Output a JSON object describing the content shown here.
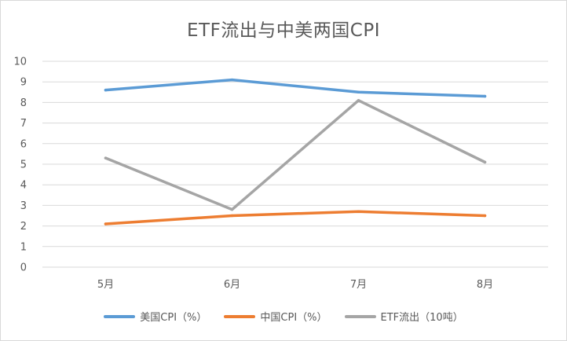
{
  "chart_data": {
    "type": "line",
    "title": "ETF流出与中美两国CPI",
    "categories": [
      "5月",
      "6月",
      "7月",
      "8月"
    ],
    "ylim": [
      0,
      10
    ],
    "yticks": [
      0,
      1,
      2,
      3,
      4,
      5,
      6,
      7,
      8,
      9,
      10
    ],
    "grid": true,
    "legend_position": "bottom",
    "series": [
      {
        "name": "美国CPI（%）",
        "color": "#5b9bd5",
        "values": [
          8.6,
          9.1,
          8.5,
          8.3
        ]
      },
      {
        "name": "中国CPI（%）",
        "color": "#ed7d31",
        "values": [
          2.1,
          2.5,
          2.7,
          2.5
        ]
      },
      {
        "name": "ETF流出（10吨）",
        "color": "#a5a5a5",
        "values": [
          5.3,
          2.8,
          8.1,
          5.1
        ]
      }
    ]
  }
}
